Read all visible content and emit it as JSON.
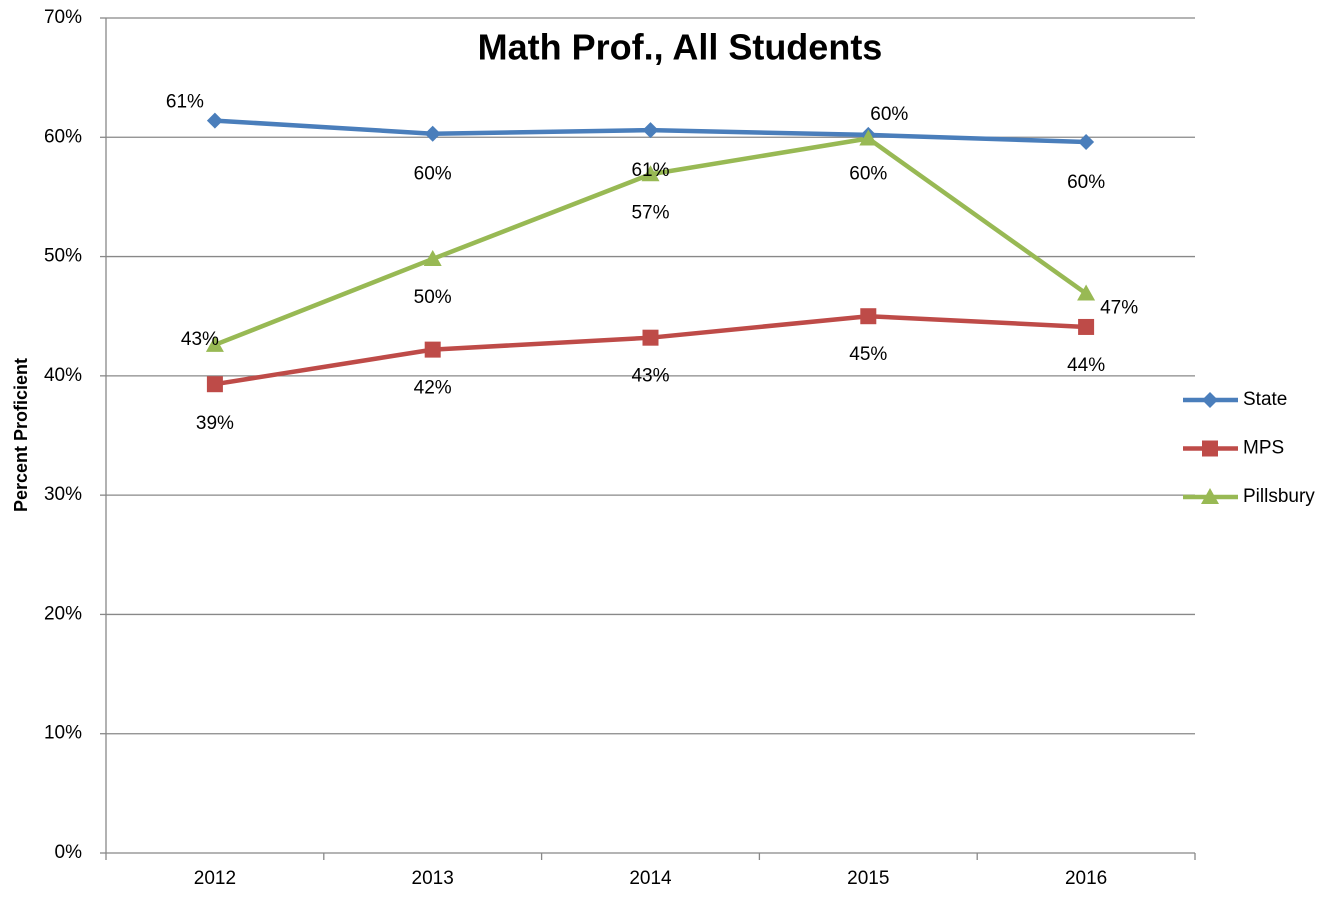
{
  "chart_data": {
    "type": "line",
    "title": "Math Prof., All Students",
    "y_label": "Percent Proficient",
    "categories": [
      "2012",
      "2013",
      "2014",
      "2015",
      "2016"
    ],
    "series": [
      {
        "name": "State",
        "color": "#4a7ebb",
        "marker": "diamond",
        "values": [
          61.4,
          60.3,
          60.6,
          60.2,
          59.6
        ],
        "value_labels": [
          "61%",
          "60%",
          "61%",
          "60%",
          "60%"
        ]
      },
      {
        "name": "MPS",
        "color": "#be4b48",
        "marker": "square",
        "values": [
          39.3,
          42.2,
          43.2,
          45.0,
          44.1
        ],
        "value_labels": [
          "39%",
          "42%",
          "43%",
          "45%",
          "44%"
        ]
      },
      {
        "name": "Pillsbury",
        "color": "#98b954",
        "marker": "triangle",
        "values": [
          42.6,
          49.8,
          56.9,
          59.9,
          46.9
        ],
        "value_labels": [
          "43%",
          "50%",
          "57%",
          "60%",
          "47%"
        ]
      }
    ],
    "ylim": [
      0,
      70
    ],
    "yticks": [
      {
        "value": 0,
        "label": "0%"
      },
      {
        "value": 10,
        "label": "10%"
      },
      {
        "value": 20,
        "label": "20%"
      },
      {
        "value": 30,
        "label": "30%"
      },
      {
        "value": 40,
        "label": "40%"
      },
      {
        "value": 50,
        "label": "50%"
      },
      {
        "value": 60,
        "label": "60%"
      },
      {
        "value": 70,
        "label": "70%"
      }
    ],
    "grid": true,
    "legend": "right"
  }
}
